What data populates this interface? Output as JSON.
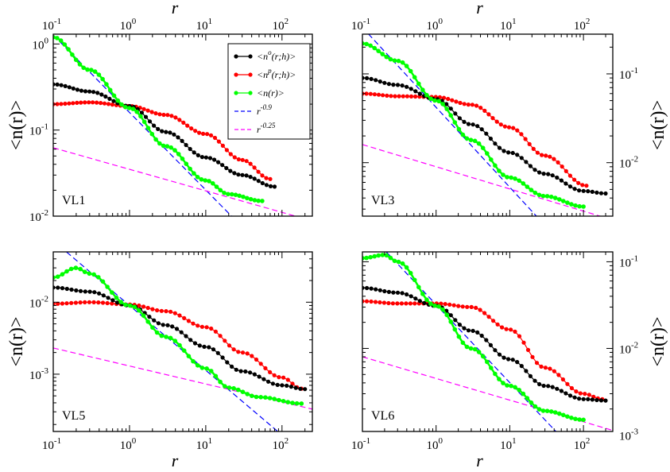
{
  "chart_data": {
    "type": "line",
    "log_x": true,
    "log_y": true,
    "shared_x": {
      "label": "r",
      "range": [
        0.1,
        250
      ],
      "ticks": [
        0.1,
        1,
        10,
        100
      ],
      "tick_labels": [
        {
          "base": "10",
          "exp": "-1"
        },
        {
          "base": "10",
          "exp": "0"
        },
        {
          "base": "10",
          "exp": "1"
        },
        {
          "base": "10",
          "exp": "2"
        }
      ]
    },
    "ylabel": "<n(r)>",
    "legend": {
      "location": "top-right of first panel",
      "entries": [
        {
          "key": "n_o",
          "label": "<n",
          "sup": "o",
          "rest": "(r;h)>",
          "color": "#000000",
          "style": "line+dots"
        },
        {
          "key": "n_p",
          "label": "<n",
          "sup": "p",
          "rest": "(r;h)>",
          "color": "#ff0000",
          "style": "line+dots"
        },
        {
          "key": "n",
          "label": "<n(r)>",
          "sup": "",
          "rest": "",
          "color": "#00ff00",
          "style": "line+dots"
        },
        {
          "key": "pow_09",
          "label": "r",
          "sup": "-0.9",
          "rest": "",
          "color": "#0000ff",
          "style": "dashed"
        },
        {
          "key": "pow_025",
          "label": "r",
          "sup": "-0.25",
          "rest": "",
          "color": "#ff00ff",
          "style": "dashed"
        }
      ]
    },
    "panels": [
      {
        "name": "VL1",
        "label": "VL1",
        "y_axis_side": "left",
        "show_top_ticklabels": true,
        "show_bottom_ticklabels": false,
        "show_xlabel_top": true,
        "show_xlabel_bottom": false,
        "ylim": [
          0.01,
          1.3
        ],
        "yticks": [
          {
            "value": 0.01,
            "base": "10",
            "exp": "-2"
          },
          {
            "value": 0.1,
            "base": "10",
            "exp": "-1"
          },
          {
            "value": 1,
            "base": "10",
            "exp": "0"
          }
        ],
        "reference_lines": [
          {
            "key": "pow_09",
            "amp": 0.16,
            "exponent": -0.9
          },
          {
            "key": "pow_025",
            "amp": 0.035,
            "exponent": -0.25
          }
        ],
        "series": [
          {
            "key": "n_o",
            "name": "<n^o(r;h)>",
            "r_range": [
              0.1,
              80
            ],
            "points": [
              [
                0.1,
                0.34
              ],
              [
                0.3,
                0.28
              ],
              [
                1,
                0.19
              ],
              [
                3,
                0.095
              ],
              [
                10,
                0.048
              ],
              [
                30,
                0.03
              ],
              [
                80,
                0.022
              ]
            ]
          },
          {
            "key": "n_p",
            "name": "<n^p(r;h)>",
            "r_range": [
              0.1,
              70
            ],
            "points": [
              [
                0.1,
                0.2
              ],
              [
                0.3,
                0.21
              ],
              [
                1,
                0.19
              ],
              [
                3,
                0.15
              ],
              [
                10,
                0.09
              ],
              [
                30,
                0.045
              ],
              [
                70,
                0.027
              ]
            ]
          },
          {
            "key": "n",
            "name": "<n(r)>",
            "r_range": [
              0.1,
              55
            ],
            "points": [
              [
                0.1,
                1.2
              ],
              [
                0.3,
                0.5
              ],
              [
                1,
                0.18
              ],
              [
                3,
                0.065
              ],
              [
                10,
                0.026
              ],
              [
                20,
                0.018
              ],
              [
                55,
                0.015
              ]
            ]
          }
        ]
      },
      {
        "name": "VL3",
        "label": "VL3",
        "y_axis_side": "right",
        "show_top_ticklabels": true,
        "show_bottom_ticklabels": false,
        "show_xlabel_top": true,
        "show_xlabel_bottom": false,
        "ylim": [
          0.0025,
          0.28
        ],
        "yticks": [
          {
            "value": 0.01,
            "base": "10",
            "exp": "-2"
          },
          {
            "value": 0.1,
            "base": "10",
            "exp": "-1"
          }
        ],
        "reference_lines": [
          {
            "key": "pow_09",
            "amp": 0.042,
            "exponent": -0.9
          },
          {
            "key": "pow_025",
            "amp": 0.009,
            "exponent": -0.25
          }
        ],
        "series": [
          {
            "key": "n_o",
            "name": "<n^o(r;h)>",
            "r_range": [
              0.1,
              200
            ],
            "points": [
              [
                0.1,
                0.09
              ],
              [
                0.3,
                0.075
              ],
              [
                1,
                0.052
              ],
              [
                3,
                0.027
              ],
              [
                10,
                0.013
              ],
              [
                30,
                0.0075
              ],
              [
                100,
                0.0048
              ],
              [
                200,
                0.0045
              ]
            ]
          },
          {
            "key": "n_p",
            "name": "<n^p(r;h)>",
            "r_range": [
              0.1,
              110
            ],
            "points": [
              [
                0.1,
                0.06
              ],
              [
                0.3,
                0.056
              ],
              [
                1,
                0.055
              ],
              [
                3,
                0.045
              ],
              [
                10,
                0.025
              ],
              [
                30,
                0.012
              ],
              [
                110,
                0.0055
              ]
            ]
          },
          {
            "key": "n",
            "name": "<n(r)>",
            "r_range": [
              0.1,
              100
            ],
            "points": [
              [
                0.1,
                0.22
              ],
              [
                0.3,
                0.14
              ],
              [
                1,
                0.05
              ],
              [
                3,
                0.018
              ],
              [
                10,
                0.0068
              ],
              [
                30,
                0.0042
              ],
              [
                100,
                0.0032
              ]
            ]
          }
        ]
      },
      {
        "name": "VL5",
        "label": "VL5",
        "y_axis_side": "left",
        "show_top_ticklabels": false,
        "show_bottom_ticklabels": true,
        "show_xlabel_top": false,
        "show_xlabel_bottom": true,
        "ylim": [
          0.00016,
          0.05
        ],
        "yticks": [
          {
            "value": 0.001,
            "base": "10",
            "exp": "-3"
          },
          {
            "value": 0.01,
            "base": "10",
            "exp": "-2"
          }
        ],
        "reference_lines": [
          {
            "key": "pow_09",
            "amp": 0.009,
            "exponent": -0.9
          },
          {
            "key": "pow_025",
            "amp": 0.0013,
            "exponent": -0.25
          }
        ],
        "series": [
          {
            "key": "n_o",
            "name": "<n^o(r;h)>",
            "r_range": [
              0.1,
              200
            ],
            "points": [
              [
                0.1,
                0.016
              ],
              [
                0.3,
                0.014
              ],
              [
                1,
                0.009
              ],
              [
                3,
                0.0048
              ],
              [
                10,
                0.0024
              ],
              [
                30,
                0.0011
              ],
              [
                100,
                0.0007
              ],
              [
                200,
                0.00062
              ]
            ]
          },
          {
            "key": "n_p",
            "name": "<n^p(r;h)>",
            "r_range": [
              0.1,
              180
            ],
            "points": [
              [
                0.1,
                0.0095
              ],
              [
                0.3,
                0.01
              ],
              [
                1,
                0.0093
              ],
              [
                3,
                0.0075
              ],
              [
                10,
                0.0045
              ],
              [
                30,
                0.002
              ],
              [
                100,
                0.0009
              ],
              [
                180,
                0.00063
              ]
            ]
          },
          {
            "key": "n",
            "name": "<n(r)>",
            "r_range": [
              0.1,
              180
            ],
            "points": [
              [
                0.1,
                0.022
              ],
              [
                0.2,
                0.03
              ],
              [
                0.3,
                0.025
              ],
              [
                1,
                0.009
              ],
              [
                3,
                0.0033
              ],
              [
                10,
                0.0012
              ],
              [
                20,
                0.00065
              ],
              [
                50,
                0.00048
              ],
              [
                180,
                0.00039
              ]
            ]
          }
        ]
      },
      {
        "name": "VL6",
        "label": "VL6",
        "y_axis_side": "right",
        "show_top_ticklabels": false,
        "show_bottom_ticklabels": true,
        "show_xlabel_top": false,
        "show_xlabel_bottom": true,
        "ylim": [
          0.0011,
          0.13
        ],
        "yticks": [
          {
            "value": 0.001,
            "base": "10",
            "exp": "-3"
          },
          {
            "value": 0.01,
            "base": "10",
            "exp": "-2"
          },
          {
            "value": 0.1,
            "base": "10",
            "exp": "-1"
          }
        ],
        "reference_lines": [
          {
            "key": "pow_09",
            "amp": 0.032,
            "exponent": -0.9
          },
          {
            "key": "pow_025",
            "amp": 0.0045,
            "exponent": -0.25
          }
        ],
        "series": [
          {
            "key": "n_o",
            "name": "<n^o(r;h)>",
            "r_range": [
              0.1,
              200
            ],
            "points": [
              [
                0.1,
                0.05
              ],
              [
                0.3,
                0.044
              ],
              [
                1,
                0.031
              ],
              [
                3,
                0.016
              ],
              [
                10,
                0.0075
              ],
              [
                30,
                0.0037
              ],
              [
                100,
                0.0026
              ],
              [
                200,
                0.0025
              ]
            ]
          },
          {
            "key": "n_p",
            "name": "<n^p(r;h)>",
            "r_range": [
              0.1,
              180
            ],
            "points": [
              [
                0.1,
                0.035
              ],
              [
                0.3,
                0.033
              ],
              [
                1,
                0.033
              ],
              [
                3,
                0.03
              ],
              [
                10,
                0.0165
              ],
              [
                30,
                0.006
              ],
              [
                100,
                0.003
              ],
              [
                180,
                0.0026
              ]
            ]
          },
          {
            "key": "n",
            "name": "<n(r)>",
            "r_range": [
              0.1,
              100
            ],
            "points": [
              [
                0.1,
                0.11
              ],
              [
                0.2,
                0.12
              ],
              [
                0.3,
                0.1
              ],
              [
                1,
                0.031
              ],
              [
                3,
                0.01
              ],
              [
                10,
                0.0037
              ],
              [
                30,
                0.0019
              ],
              [
                100,
                0.0015
              ]
            ]
          }
        ]
      }
    ]
  }
}
